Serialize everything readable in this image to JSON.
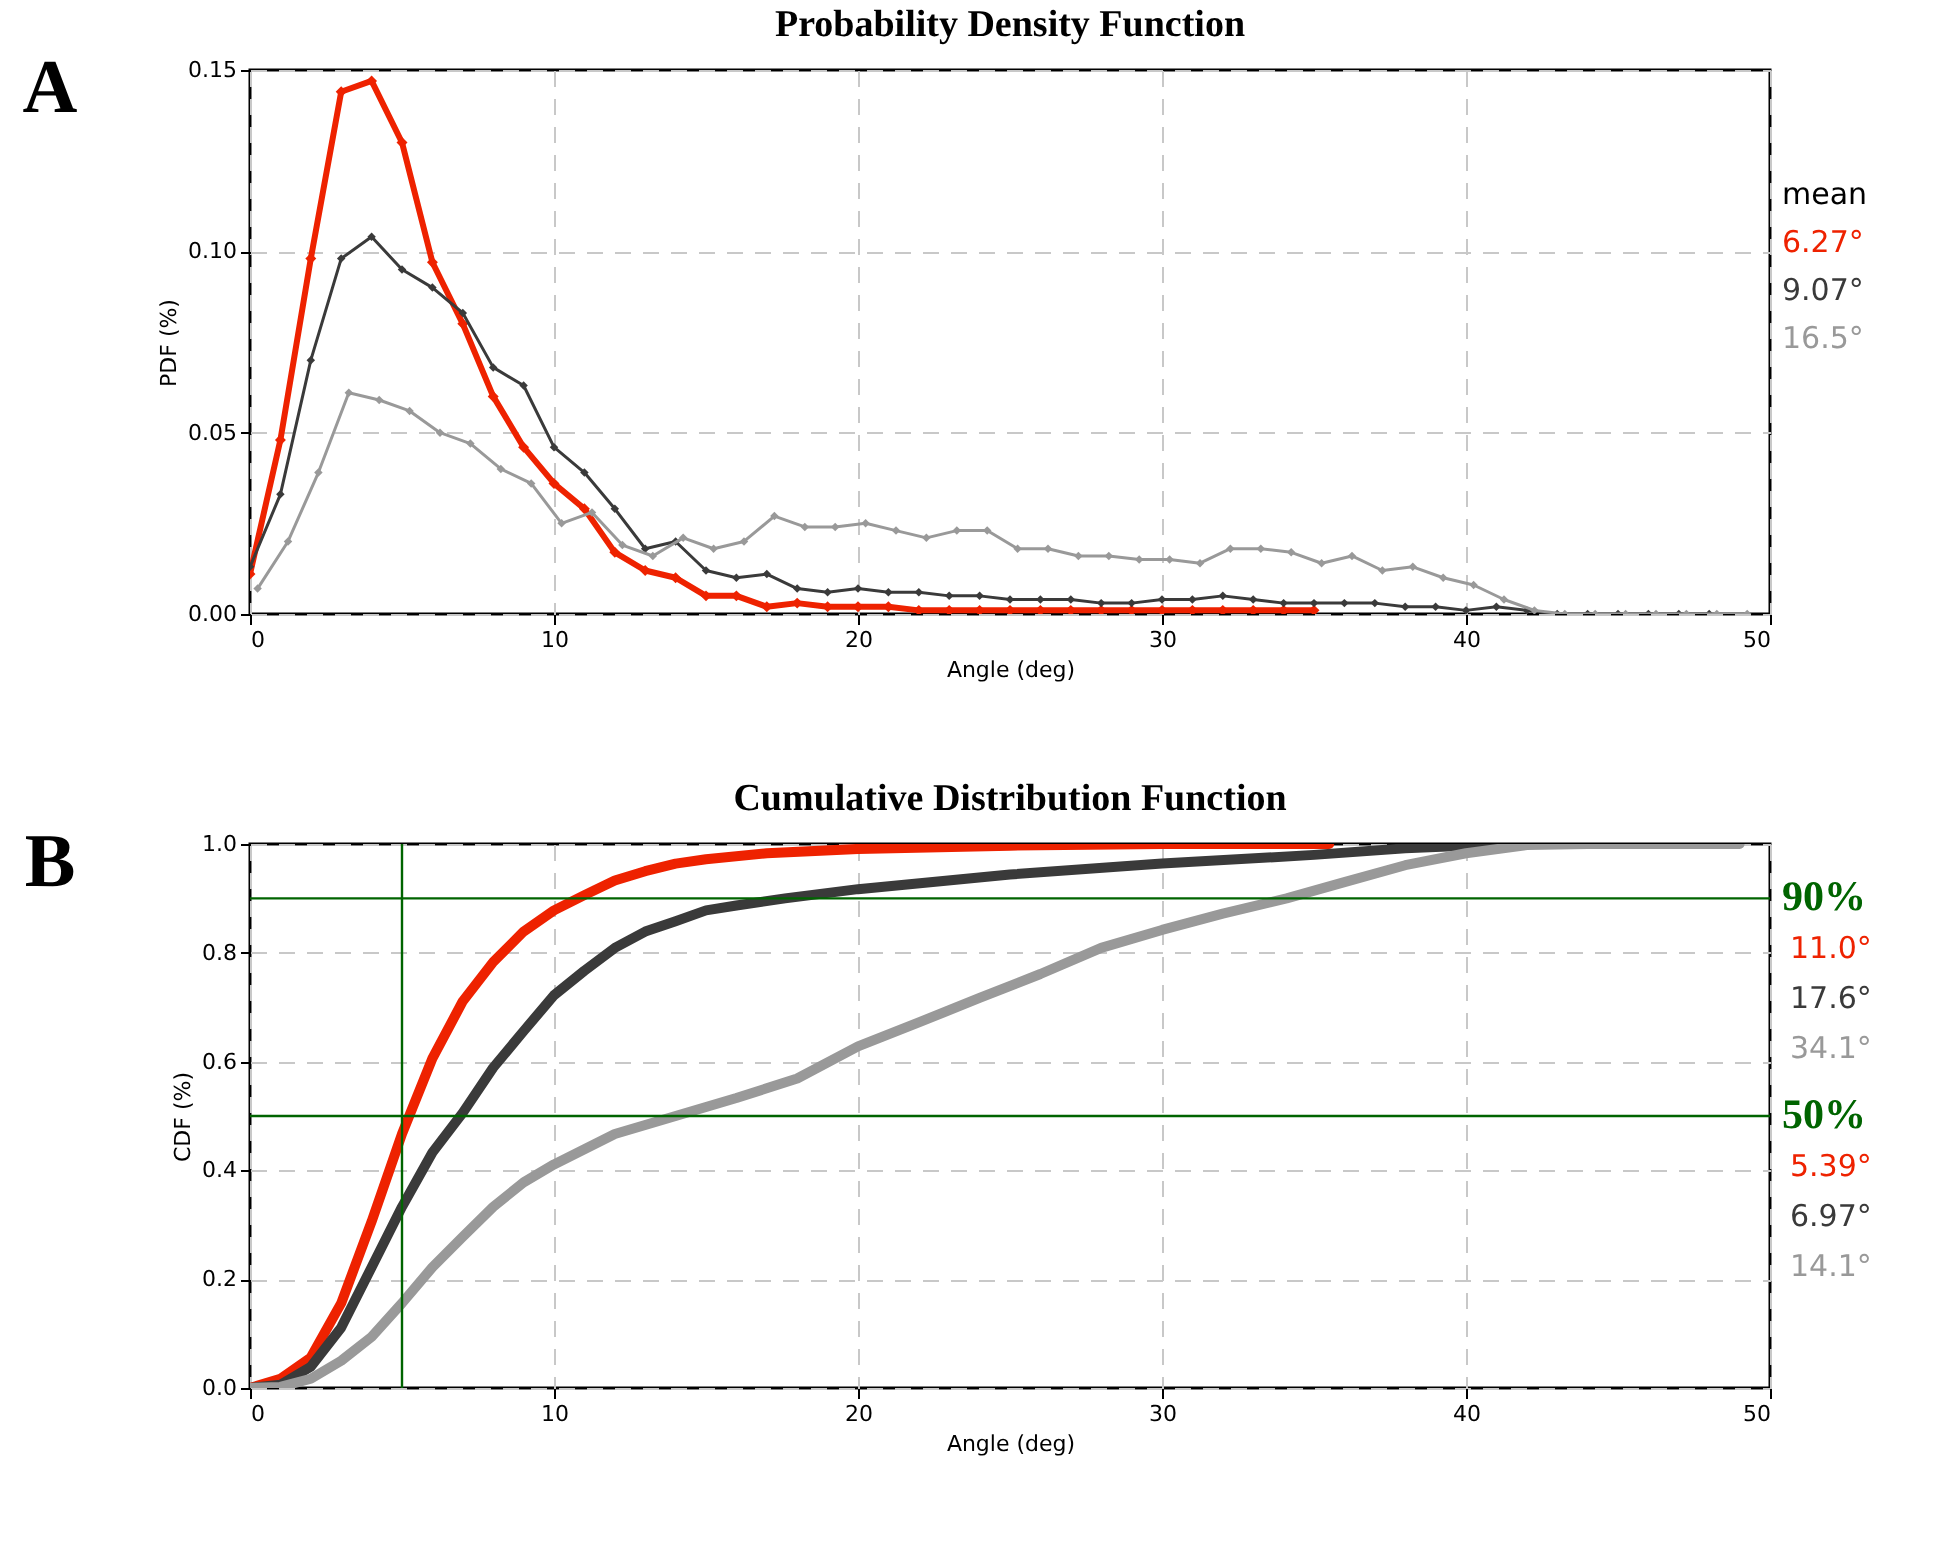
{
  "chart_data": [
    {
      "type": "line",
      "title": "Probability Density Function",
      "xlabel": "Angle (deg)",
      "ylabel": "PDF (%)",
      "xlim": [
        0,
        50
      ],
      "xticks": [
        0,
        10,
        20,
        30,
        40,
        50
      ],
      "ylim": [
        0,
        0.15
      ],
      "yticks": [
        {
          "value": 0,
          "label": "0.00"
        },
        {
          "value": 0.05,
          "label": "0.05"
        },
        {
          "value": 0.1,
          "label": "0.10"
        },
        {
          "value": 0.15,
          "label": "0.15"
        }
      ],
      "grid": true,
      "legend": false,
      "marker": "diamond",
      "line_style": "solid",
      "annotations": [
        "A",
        "mean",
        "6.27°",
        "9.07°",
        "16.5°"
      ],
      "series": [
        {
          "color": "#ee2200",
          "x": [
            0,
            1,
            2,
            3,
            4,
            5,
            6,
            7,
            8,
            9,
            10,
            11,
            12,
            13,
            14,
            15,
            16,
            17,
            18,
            19,
            20,
            21,
            22,
            23,
            24,
            25,
            26,
            27,
            28,
            29,
            30,
            31,
            32,
            33,
            34,
            35
          ],
          "values": [
            0.011,
            0.048,
            0.098,
            0.144,
            0.147,
            0.13,
            0.097,
            0.08,
            0.06,
            0.046,
            0.036,
            0.029,
            0.017,
            0.012,
            0.01,
            0.005,
            0.005,
            0.002,
            0.003,
            0.002,
            0.002,
            0.002,
            0.001,
            0.001,
            0.001,
            0.001,
            0.001,
            0.001,
            0.001,
            0.001,
            0.001,
            0.001,
            0.001,
            0.001,
            0.001,
            0.001
          ]
        },
        {
          "color": "#3a3a3a",
          "x": [
            0,
            1,
            2,
            3,
            4,
            5,
            6,
            7,
            8,
            9,
            10,
            11,
            12,
            13,
            14,
            15,
            16,
            17,
            18,
            19,
            20,
            21,
            22,
            23,
            24,
            25,
            26,
            27,
            28,
            29,
            30,
            31,
            32,
            33,
            34,
            35,
            36,
            37,
            38,
            39,
            40,
            41,
            42,
            43,
            44,
            45,
            46,
            47,
            48
          ],
          "values": [
            0.013,
            0.033,
            0.07,
            0.098,
            0.104,
            0.095,
            0.09,
            0.083,
            0.068,
            0.063,
            0.046,
            0.039,
            0.029,
            0.018,
            0.02,
            0.012,
            0.01,
            0.011,
            0.007,
            0.006,
            0.007,
            0.006,
            0.006,
            0.005,
            0.005,
            0.004,
            0.004,
            0.004,
            0.003,
            0.003,
            0.004,
            0.004,
            0.005,
            0.004,
            0.003,
            0.003,
            0.003,
            0.003,
            0.002,
            0.002,
            0.001,
            0.002,
            0.001,
            0,
            0,
            0,
            0,
            0,
            0
          ]
        },
        {
          "color": "#999999",
          "x": [
            0.25,
            1.25,
            2.25,
            3.25,
            4.25,
            5.25,
            6.25,
            7.25,
            8.25,
            9.25,
            10.25,
            11.25,
            12.25,
            13.25,
            14.25,
            15.25,
            16.25,
            17.25,
            18.25,
            19.25,
            20.25,
            21.25,
            22.25,
            23.25,
            24.25,
            25.25,
            26.25,
            27.25,
            28.25,
            29.25,
            30.25,
            31.25,
            32.25,
            33.25,
            34.25,
            35.25,
            36.25,
            37.25,
            38.25,
            39.25,
            40.25,
            41.25,
            42.25,
            43.25,
            44.25,
            45.25,
            46.25,
            47.25,
            48.25,
            49.25
          ],
          "values": [
            0.007,
            0.02,
            0.039,
            0.061,
            0.059,
            0.056,
            0.05,
            0.047,
            0.04,
            0.036,
            0.025,
            0.028,
            0.019,
            0.016,
            0.021,
            0.018,
            0.02,
            0.027,
            0.024,
            0.024,
            0.025,
            0.023,
            0.021,
            0.023,
            0.023,
            0.018,
            0.018,
            0.016,
            0.016,
            0.015,
            0.015,
            0.014,
            0.018,
            0.018,
            0.017,
            0.014,
            0.016,
            0.012,
            0.013,
            0.01,
            0.008,
            0.004,
            0.001,
            0,
            0,
            0,
            0,
            0,
            0,
            0
          ]
        }
      ]
    },
    {
      "type": "line",
      "title": "Cumulative Distribution Function",
      "xlabel": "Angle (deg)",
      "ylabel": "CDF (%)",
      "xlim": [
        0,
        50
      ],
      "xticks": [
        0,
        10,
        20,
        30,
        40,
        50
      ],
      "ylim": [
        0,
        1
      ],
      "yticks": [
        {
          "value": 0,
          "label": "0.0"
        },
        0.2,
        0.4,
        0.6,
        0.8,
        {
          "value": 1,
          "label": "1.0"
        }
      ],
      "grid": true,
      "legend": false,
      "line_style": "solid",
      "ref_lines": [
        {
          "axis": "y",
          "value": 0.9,
          "label": "90%",
          "color": "#006400"
        },
        {
          "axis": "y",
          "value": 0.5,
          "label": "50%",
          "color": "#006400"
        },
        {
          "axis": "x",
          "value": 5,
          "color": "#006400"
        }
      ],
      "annotations": [
        "B",
        "11.0°",
        "17.6°",
        "34.1°",
        "5.39°",
        "6.97°",
        "14.1°"
      ],
      "series": [
        {
          "color": "#ee2200",
          "x": [
            0,
            1,
            2,
            3,
            4,
            5,
            6,
            7,
            8,
            9,
            10,
            11,
            12,
            13,
            14,
            15,
            17,
            20,
            25,
            30,
            35.5
          ],
          "values": [
            0,
            0.017,
            0.056,
            0.156,
            0.306,
            0.467,
            0.606,
            0.711,
            0.783,
            0.839,
            0.878,
            0.906,
            0.933,
            0.95,
            0.964,
            0.972,
            0.983,
            0.991,
            0.997,
            1.0,
            1.0
          ]
        },
        {
          "color": "#3a3a3a",
          "x": [
            0,
            1,
            2,
            3,
            4,
            5,
            6,
            7,
            8,
            9,
            10,
            11,
            12,
            13,
            14,
            15,
            16,
            17.6,
            20,
            25,
            30,
            35,
            38,
            40,
            42
          ],
          "values": [
            0,
            0.006,
            0.039,
            0.111,
            0.222,
            0.333,
            0.433,
            0.506,
            0.589,
            0.656,
            0.722,
            0.767,
            0.809,
            0.839,
            0.858,
            0.878,
            0.887,
            0.9,
            0.917,
            0.944,
            0.964,
            0.98,
            0.992,
            0.997,
            1.0
          ]
        },
        {
          "color": "#999999",
          "x": [
            0,
            1,
            2,
            3,
            4,
            5,
            6,
            7,
            8,
            9,
            10,
            11,
            12,
            14,
            16,
            18,
            20,
            22,
            24,
            26,
            28,
            30,
            32,
            34.1,
            36,
            38,
            40,
            42,
            44,
            49
          ],
          "values": [
            0,
            0.002,
            0.017,
            0.05,
            0.094,
            0.156,
            0.222,
            0.278,
            0.333,
            0.378,
            0.411,
            0.439,
            0.467,
            0.5,
            0.533,
            0.569,
            0.628,
            0.672,
            0.717,
            0.761,
            0.809,
            0.842,
            0.872,
            0.9,
            0.93,
            0.961,
            0.983,
            0.998,
            1.0,
            1.0
          ]
        }
      ]
    }
  ]
}
